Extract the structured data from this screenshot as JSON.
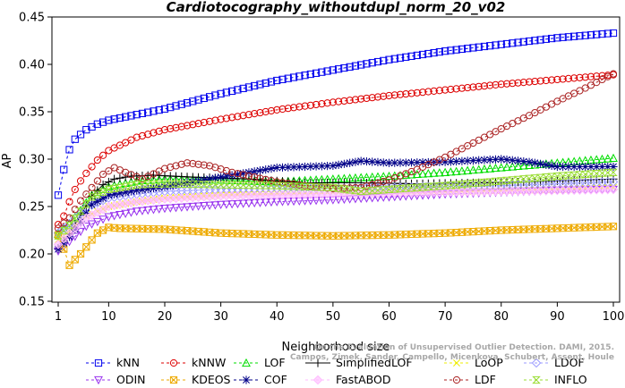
{
  "chart_data": {
    "type": "line",
    "title": "Cardiotocography_withoutdupl_norm_20_v02",
    "xlabel": "Neighborhood size",
    "ylabel": "AP",
    "xlim": [
      1,
      100
    ],
    "ylim": [
      0.15,
      0.45
    ],
    "x_ticks": [
      1,
      10,
      20,
      30,
      40,
      50,
      60,
      70,
      80,
      90,
      100
    ],
    "y_ticks": [
      0.15,
      0.2,
      0.25,
      0.3,
      0.35,
      0.4,
      0.45
    ],
    "y_tick_labels": [
      "0.15",
      "0.20",
      "0.25",
      "0.30",
      "0.35",
      "0.40",
      "0.45"
    ],
    "grid": false,
    "legend_position": "bottom",
    "credit": "Campos, Zimek, Sander, Campello, Micenkova, Schubert, Assent, Houle: On the Evaluation of Unsupervised Outlier Detection. DAMI, 2015.",
    "series": [
      {
        "name": "kNN",
        "color": "#0000ee",
        "marker": "square",
        "dash": "3,3",
        "keypoints": [
          [
            1,
            0.262
          ],
          [
            2,
            0.289
          ],
          [
            3,
            0.31
          ],
          [
            4,
            0.321
          ],
          [
            5,
            0.326
          ],
          [
            6,
            0.331
          ],
          [
            8,
            0.337
          ],
          [
            10,
            0.341
          ],
          [
            15,
            0.347
          ],
          [
            20,
            0.353
          ],
          [
            30,
            0.369
          ],
          [
            40,
            0.383
          ],
          [
            50,
            0.394
          ],
          [
            60,
            0.405
          ],
          [
            70,
            0.414
          ],
          [
            80,
            0.421
          ],
          [
            90,
            0.428
          ],
          [
            100,
            0.433
          ]
        ]
      },
      {
        "name": "kNNW",
        "color": "#dd0000",
        "marker": "circle-open",
        "dash": "3,3",
        "keypoints": [
          [
            1,
            0.231
          ],
          [
            2,
            0.24
          ],
          [
            3,
            0.255
          ],
          [
            4,
            0.268
          ],
          [
            5,
            0.277
          ],
          [
            6,
            0.285
          ],
          [
            8,
            0.299
          ],
          [
            10,
            0.309
          ],
          [
            15,
            0.323
          ],
          [
            20,
            0.331
          ],
          [
            30,
            0.342
          ],
          [
            40,
            0.352
          ],
          [
            50,
            0.36
          ],
          [
            60,
            0.367
          ],
          [
            70,
            0.373
          ],
          [
            80,
            0.379
          ],
          [
            90,
            0.384
          ],
          [
            100,
            0.389
          ]
        ]
      },
      {
        "name": "LOF",
        "color": "#00dd00",
        "marker": "triangle",
        "dash": "3,3",
        "keypoints": [
          [
            1,
            0.221
          ],
          [
            3,
            0.232
          ],
          [
            5,
            0.246
          ],
          [
            7,
            0.262
          ],
          [
            10,
            0.271
          ],
          [
            15,
            0.277
          ],
          [
            20,
            0.279
          ],
          [
            30,
            0.278
          ],
          [
            40,
            0.276
          ],
          [
            50,
            0.279
          ],
          [
            60,
            0.282
          ],
          [
            70,
            0.286
          ],
          [
            80,
            0.291
          ],
          [
            90,
            0.296
          ],
          [
            100,
            0.301
          ]
        ]
      },
      {
        "name": "SimplifiedLOF",
        "color": "#000000",
        "marker": "plus",
        "dash": "",
        "keypoints": [
          [
            1,
            0.206
          ],
          [
            3,
            0.221
          ],
          [
            5,
            0.241
          ],
          [
            7,
            0.261
          ],
          [
            9,
            0.273
          ],
          [
            11,
            0.279
          ],
          [
            14,
            0.282
          ],
          [
            18,
            0.283
          ],
          [
            25,
            0.281
          ],
          [
            35,
            0.279
          ],
          [
            45,
            0.275
          ],
          [
            55,
            0.275
          ],
          [
            65,
            0.274
          ],
          [
            75,
            0.275
          ],
          [
            85,
            0.276
          ],
          [
            100,
            0.279
          ]
        ]
      },
      {
        "name": "LoOP",
        "color": "#eeee00",
        "marker": "x",
        "dash": "3,3",
        "keypoints": [
          [
            1,
            0.215
          ],
          [
            3,
            0.224
          ],
          [
            6,
            0.24
          ],
          [
            10,
            0.25
          ],
          [
            15,
            0.255
          ],
          [
            20,
            0.259
          ],
          [
            30,
            0.262
          ],
          [
            40,
            0.264
          ],
          [
            50,
            0.265
          ],
          [
            60,
            0.265
          ],
          [
            70,
            0.266
          ],
          [
            80,
            0.267
          ],
          [
            90,
            0.268
          ],
          [
            100,
            0.27
          ]
        ]
      },
      {
        "name": "LDOF",
        "color": "#9999ff",
        "marker": "diamond",
        "dash": "3,3",
        "keypoints": [
          [
            1,
            0.222
          ],
          [
            3,
            0.232
          ],
          [
            6,
            0.249
          ],
          [
            10,
            0.259
          ],
          [
            15,
            0.263
          ],
          [
            20,
            0.266
          ],
          [
            30,
            0.268
          ],
          [
            40,
            0.269
          ],
          [
            50,
            0.269
          ],
          [
            60,
            0.27
          ],
          [
            70,
            0.271
          ],
          [
            80,
            0.272
          ],
          [
            90,
            0.274
          ],
          [
            100,
            0.276
          ]
        ]
      },
      {
        "name": "ODIN",
        "color": "#9933ee",
        "marker": "triangle-down",
        "dash": "3,3",
        "keypoints": [
          [
            1,
            0.203
          ],
          [
            3,
            0.213
          ],
          [
            6,
            0.229
          ],
          [
            10,
            0.239
          ],
          [
            15,
            0.245
          ],
          [
            20,
            0.248
          ],
          [
            30,
            0.252
          ],
          [
            40,
            0.255
          ],
          [
            50,
            0.257
          ],
          [
            60,
            0.26
          ],
          [
            70,
            0.263
          ],
          [
            80,
            0.265
          ],
          [
            90,
            0.267
          ],
          [
            100,
            0.268
          ]
        ]
      },
      {
        "name": "KDEOS",
        "color": "#eeaa00",
        "marker": "square-x",
        "dash": "3,3",
        "keypoints": [
          [
            1,
            0.22
          ],
          [
            2,
            0.205
          ],
          [
            3,
            0.188
          ],
          [
            5,
            0.2
          ],
          [
            8,
            0.222
          ],
          [
            10,
            0.228
          ],
          [
            12,
            0.227
          ],
          [
            20,
            0.226
          ],
          [
            30,
            0.222
          ],
          [
            40,
            0.22
          ],
          [
            50,
            0.219
          ],
          [
            60,
            0.22
          ],
          [
            70,
            0.222
          ],
          [
            80,
            0.225
          ],
          [
            90,
            0.227
          ],
          [
            100,
            0.229
          ]
        ]
      },
      {
        "name": "COF",
        "color": "#000088",
        "marker": "asterisk",
        "dash": "3,3",
        "keypoints": [
          [
            1,
            0.205
          ],
          [
            3,
            0.218
          ],
          [
            5,
            0.234
          ],
          [
            7,
            0.252
          ],
          [
            10,
            0.262
          ],
          [
            15,
            0.267
          ],
          [
            20,
            0.271
          ],
          [
            30,
            0.281
          ],
          [
            40,
            0.291
          ],
          [
            50,
            0.293
          ],
          [
            55,
            0.298
          ],
          [
            60,
            0.296
          ],
          [
            70,
            0.297
          ],
          [
            80,
            0.3
          ],
          [
            85,
            0.297
          ],
          [
            90,
            0.292
          ],
          [
            100,
            0.292
          ]
        ]
      },
      {
        "name": "FastABOD",
        "color": "#ffbbff",
        "marker": "diamond-filled",
        "dash": "3,3",
        "keypoints": [
          [
            1,
            0.21
          ],
          [
            3,
            0.222
          ],
          [
            6,
            0.238
          ],
          [
            10,
            0.25
          ],
          [
            15,
            0.255
          ],
          [
            20,
            0.258
          ],
          [
            30,
            0.261
          ],
          [
            40,
            0.262
          ],
          [
            50,
            0.263
          ],
          [
            60,
            0.264
          ],
          [
            70,
            0.265
          ],
          [
            80,
            0.266
          ],
          [
            90,
            0.267
          ],
          [
            100,
            0.268
          ]
        ]
      },
      {
        "name": "LDF",
        "color": "#aa2222",
        "marker": "circle-filled",
        "dash": "3,3",
        "keypoints": [
          [
            1,
            0.227
          ],
          [
            3,
            0.238
          ],
          [
            5,
            0.256
          ],
          [
            7,
            0.27
          ],
          [
            9,
            0.284
          ],
          [
            11,
            0.291
          ],
          [
            13,
            0.286
          ],
          [
            16,
            0.279
          ],
          [
            20,
            0.29
          ],
          [
            24,
            0.296
          ],
          [
            28,
            0.293
          ],
          [
            32,
            0.286
          ],
          [
            36,
            0.281
          ],
          [
            40,
            0.276
          ],
          [
            45,
            0.272
          ],
          [
            50,
            0.269
          ],
          [
            55,
            0.27
          ],
          [
            60,
            0.278
          ],
          [
            65,
            0.289
          ],
          [
            70,
            0.302
          ],
          [
            75,
            0.317
          ],
          [
            80,
            0.332
          ],
          [
            85,
            0.346
          ],
          [
            90,
            0.361
          ],
          [
            95,
            0.375
          ],
          [
            100,
            0.39
          ]
        ]
      },
      {
        "name": "INFLO",
        "color": "#99dd33",
        "marker": "hourglass",
        "dash": "3,3",
        "keypoints": [
          [
            1,
            0.219
          ],
          [
            3,
            0.23
          ],
          [
            5,
            0.245
          ],
          [
            7,
            0.26
          ],
          [
            10,
            0.268
          ],
          [
            15,
            0.273
          ],
          [
            20,
            0.274
          ],
          [
            30,
            0.273
          ],
          [
            40,
            0.272
          ],
          [
            50,
            0.27
          ],
          [
            55,
            0.266
          ],
          [
            60,
            0.268
          ],
          [
            70,
            0.272
          ],
          [
            80,
            0.277
          ],
          [
            90,
            0.282
          ],
          [
            100,
            0.286
          ]
        ]
      }
    ]
  }
}
